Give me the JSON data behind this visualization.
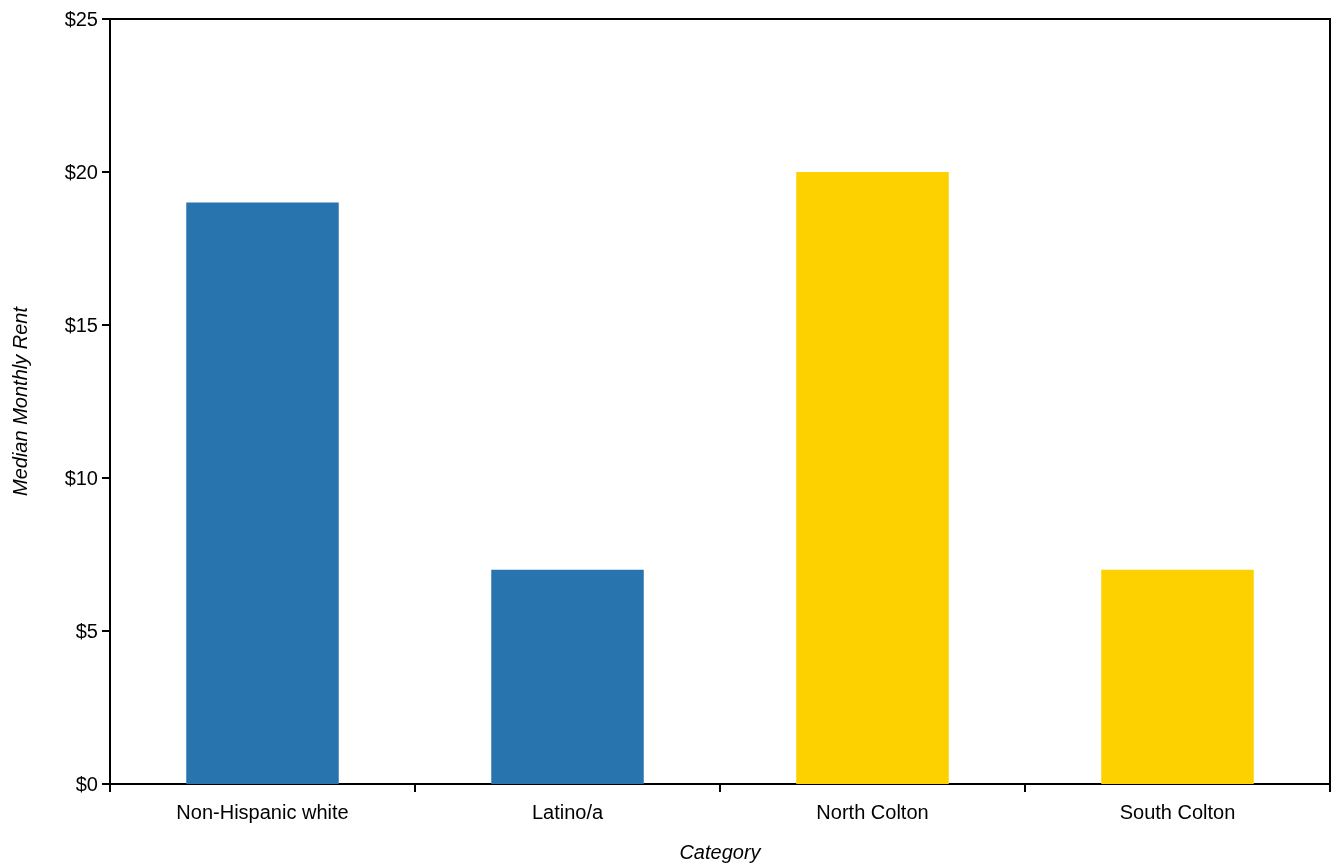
{
  "chart_data": {
    "type": "bar",
    "xlabel": "Category",
    "ylabel": "Median Monthly Rent",
    "categories": [
      "Non-Hispanic white",
      "Latino/a",
      "North Colton",
      "South Colton"
    ],
    "values": [
      19,
      7,
      20,
      7
    ],
    "colors": [
      "#2874ae",
      "#2874ae",
      "#fdd000",
      "#fdd000"
    ],
    "ylim": [
      0,
      25
    ],
    "yticks": [
      {
        "value": 0,
        "label": "$0"
      },
      {
        "value": 5,
        "label": "$5"
      },
      {
        "value": 10,
        "label": "$10"
      },
      {
        "value": 15,
        "label": "$15"
      },
      {
        "value": 20,
        "label": "$20"
      },
      {
        "value": 25,
        "label": "$25"
      }
    ],
    "grid": false
  }
}
